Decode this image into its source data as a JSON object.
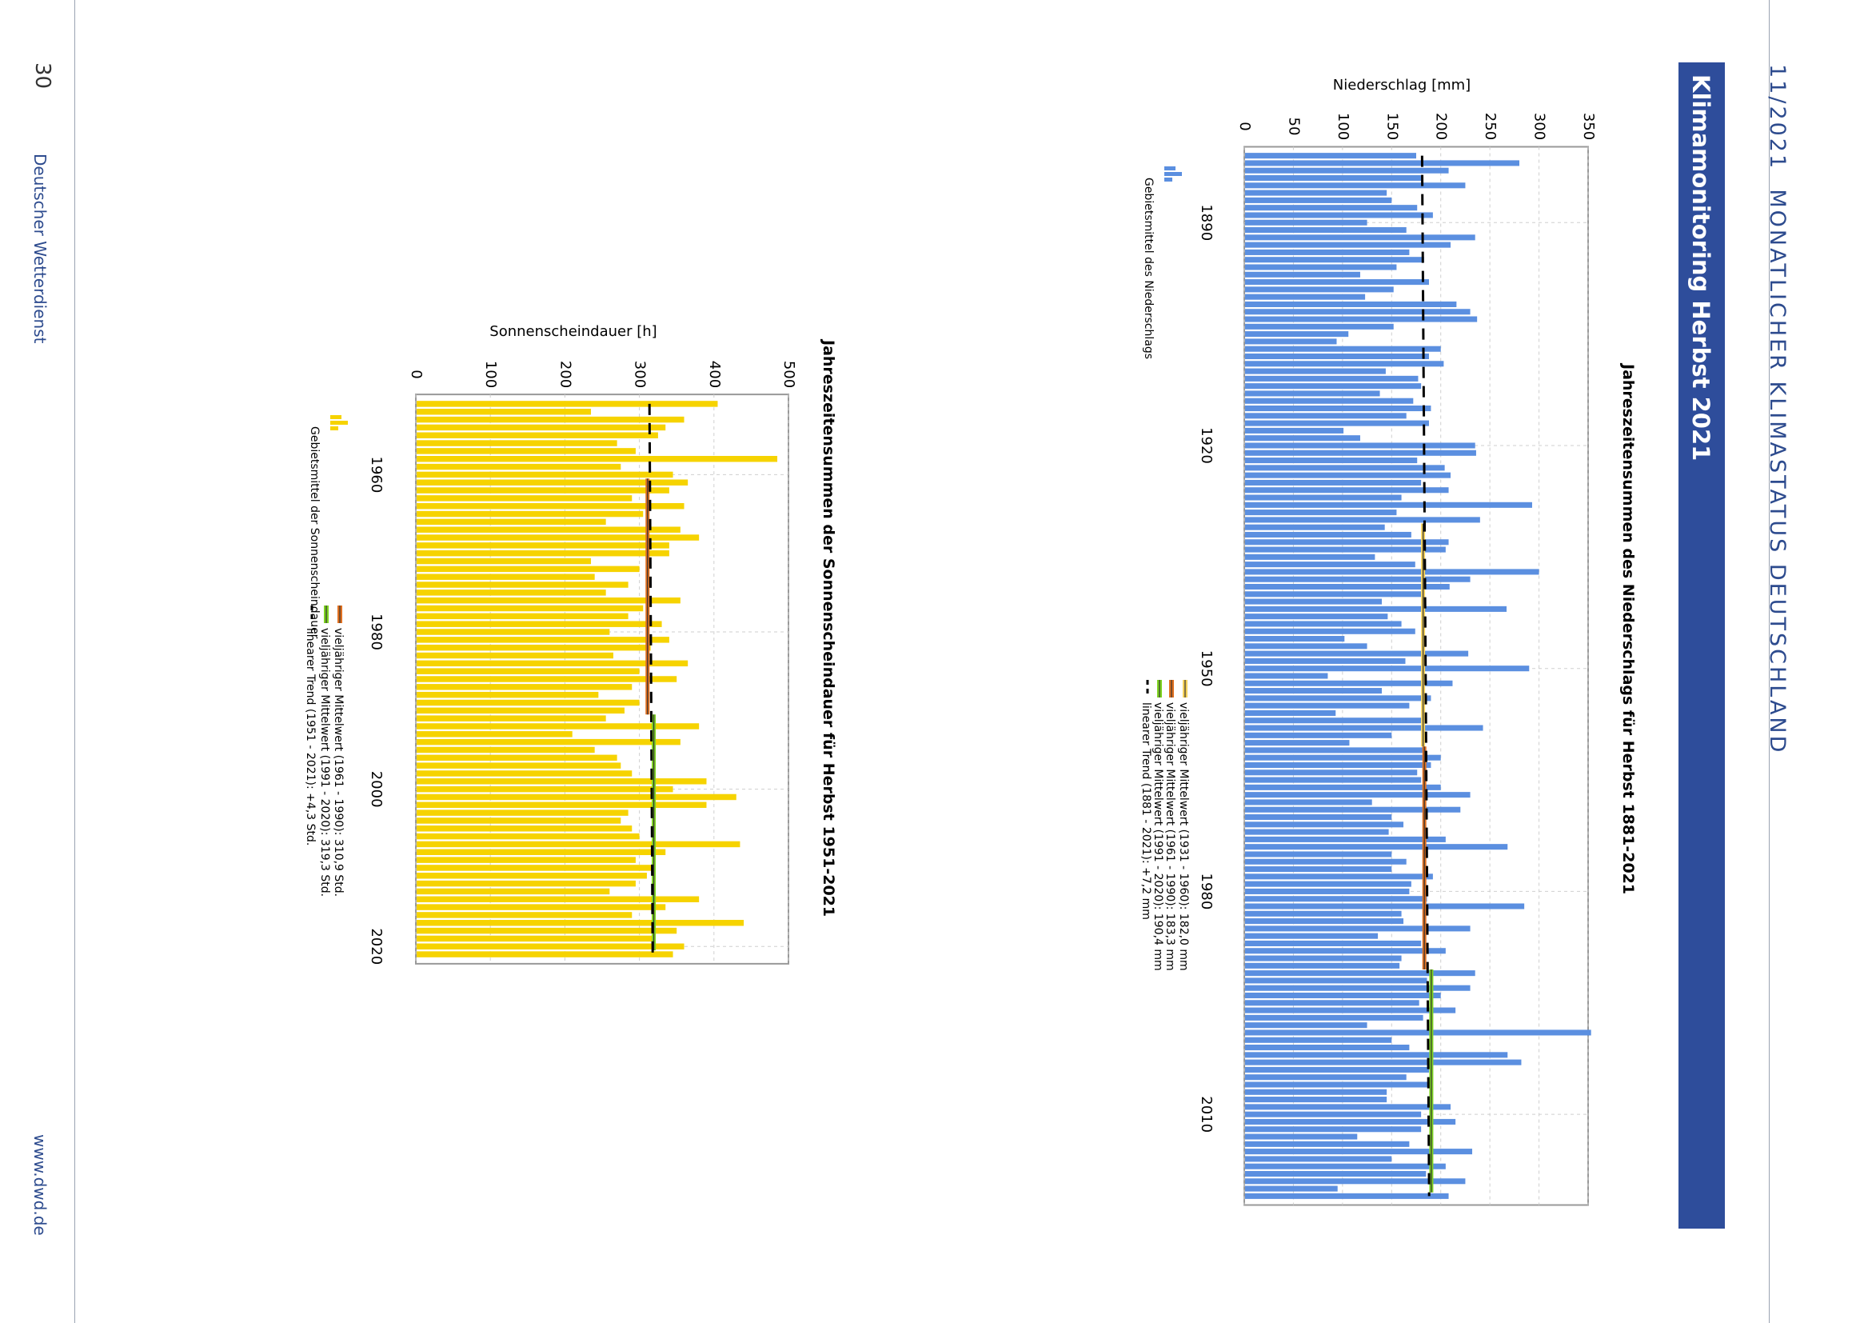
{
  "header": {
    "issue": "11/2021",
    "publication": "MONATLICHER KLIMASTATUS DEUTSCHLAND",
    "section_title": "Klimamonitoring Herbst 2021"
  },
  "footer": {
    "page_number": "30",
    "publisher": "Deutscher Wetterdienst",
    "website": "www.dwd.de"
  },
  "colors": {
    "accent": "#2e4d9b",
    "precip_bar": "#5b8fe0",
    "sun_bar": "#f6d300",
    "mean_1931_1960": "#f5d25a",
    "mean_1961_1990": "#e07020",
    "mean_1991_2020": "#7ed321",
    "trend": "#000000"
  },
  "chart_data": [
    {
      "id": "precip",
      "type": "bar",
      "title": "Jahreszeitensummen des Niederschlags für Herbst 1881-2021",
      "ylabel": "Niederschlag [mm]",
      "xlabel": "",
      "xlim": [
        1881,
        2021
      ],
      "ylim": [
        0,
        350
      ],
      "x_ticks": [
        1890,
        1920,
        1950,
        1980,
        2010
      ],
      "y_ticks": [
        0,
        50,
        100,
        150,
        200,
        250,
        300,
        350
      ],
      "grid": true,
      "start_year": 1881,
      "series": [
        {
          "name": "Gebietsmittel des Niederschlags",
          "values": [
            175,
            280,
            208,
            180,
            225,
            145,
            150,
            176,
            192,
            125,
            165,
            235,
            210,
            168,
            183,
            155,
            118,
            188,
            152,
            123,
            216,
            230,
            237,
            152,
            106,
            94,
            200,
            188,
            203,
            144,
            177,
            180,
            138,
            172,
            190,
            165,
            188,
            101,
            118,
            235,
            236,
            176,
            204,
            210,
            180,
            208,
            160,
            293,
            155,
            240,
            143,
            170,
            208,
            205,
            133,
            174,
            300,
            230,
            209,
            180,
            140,
            267,
            146,
            160,
            174,
            102,
            125,
            228,
            164,
            290,
            85,
            212,
            140,
            190,
            168,
            93,
            180,
            243,
            150,
            107,
            185,
            200,
            190,
            176,
            180,
            200,
            230,
            130,
            220,
            150,
            162,
            147,
            205,
            268,
            150,
            165,
            150,
            192,
            170,
            168,
            186,
            285,
            160,
            162,
            230,
            136,
            180,
            205,
            160,
            158,
            235,
            186,
            230,
            200,
            178,
            215,
            182,
            125,
            353,
            150,
            168,
            268,
            282,
            188,
            165,
            188,
            145,
            145,
            210,
            180,
            215,
            180,
            115,
            168,
            232,
            150,
            205,
            185,
            225,
            95,
            208
          ]
        }
      ],
      "reference_lines": [
        {
          "name": "vieljähriger Mittelwert (1931 - 1960): 182,0 mm",
          "value": 182.0,
          "from": 1931,
          "to": 1960
        },
        {
          "name": "vieljähriger Mittelwert (1961 - 1990): 183,3 mm",
          "value": 183.3,
          "from": 1961,
          "to": 1990
        },
        {
          "name": "vieljähriger Mittelwert (1991 - 2020): 190,4 mm",
          "value": 190.4,
          "from": 1991,
          "to": 2020
        },
        {
          "name": "linearer Trend (1881 - 2021): +7,2 mm",
          "value_start": 181.0,
          "value_end": 188.2,
          "from": 1881,
          "to": 2021
        }
      ],
      "legend": "below"
    },
    {
      "id": "sun",
      "type": "bar",
      "title": "Jahreszeitensummen der Sonnenscheindauer für Herbst 1951-2021",
      "ylabel": "Sonnenscheindauer [h]",
      "xlabel": "",
      "xlim": [
        1951,
        2021
      ],
      "ylim": [
        0,
        500
      ],
      "x_ticks": [
        1960,
        1980,
        2000,
        2020
      ],
      "y_ticks": [
        0,
        100,
        200,
        300,
        400,
        500
      ],
      "grid": true,
      "start_year": 1951,
      "series": [
        {
          "name": "Gebietsmittel der Sonnenscheindauer",
          "values": [
            405,
            235,
            360,
            335,
            325,
            270,
            295,
            485,
            275,
            345,
            365,
            340,
            290,
            360,
            305,
            255,
            355,
            380,
            340,
            340,
            235,
            300,
            240,
            285,
            255,
            355,
            305,
            285,
            330,
            260,
            340,
            315,
            265,
            365,
            300,
            350,
            290,
            245,
            300,
            280,
            255,
            380,
            210,
            355,
            240,
            270,
            275,
            290,
            390,
            345,
            430,
            390,
            285,
            275,
            290,
            300,
            435,
            335,
            295,
            320,
            310,
            295,
            260,
            380,
            335,
            290,
            440,
            350,
            320,
            360,
            345
          ]
        }
      ],
      "reference_lines": [
        {
          "name": "vieljähriger Mittelwert (1961 - 1990): 310,9 Std.",
          "value": 310.9,
          "from": 1961,
          "to": 1990
        },
        {
          "name": "vieljähriger Mittelwert (1991 - 2020): 319,3 Std.",
          "value": 319.3,
          "from": 1991,
          "to": 2020
        },
        {
          "name": "linearer Trend (1951 - 2021): +4,3 Std.",
          "value_start": 313.5,
          "value_end": 317.8,
          "from": 1951,
          "to": 2021
        }
      ],
      "legend": "below"
    }
  ]
}
